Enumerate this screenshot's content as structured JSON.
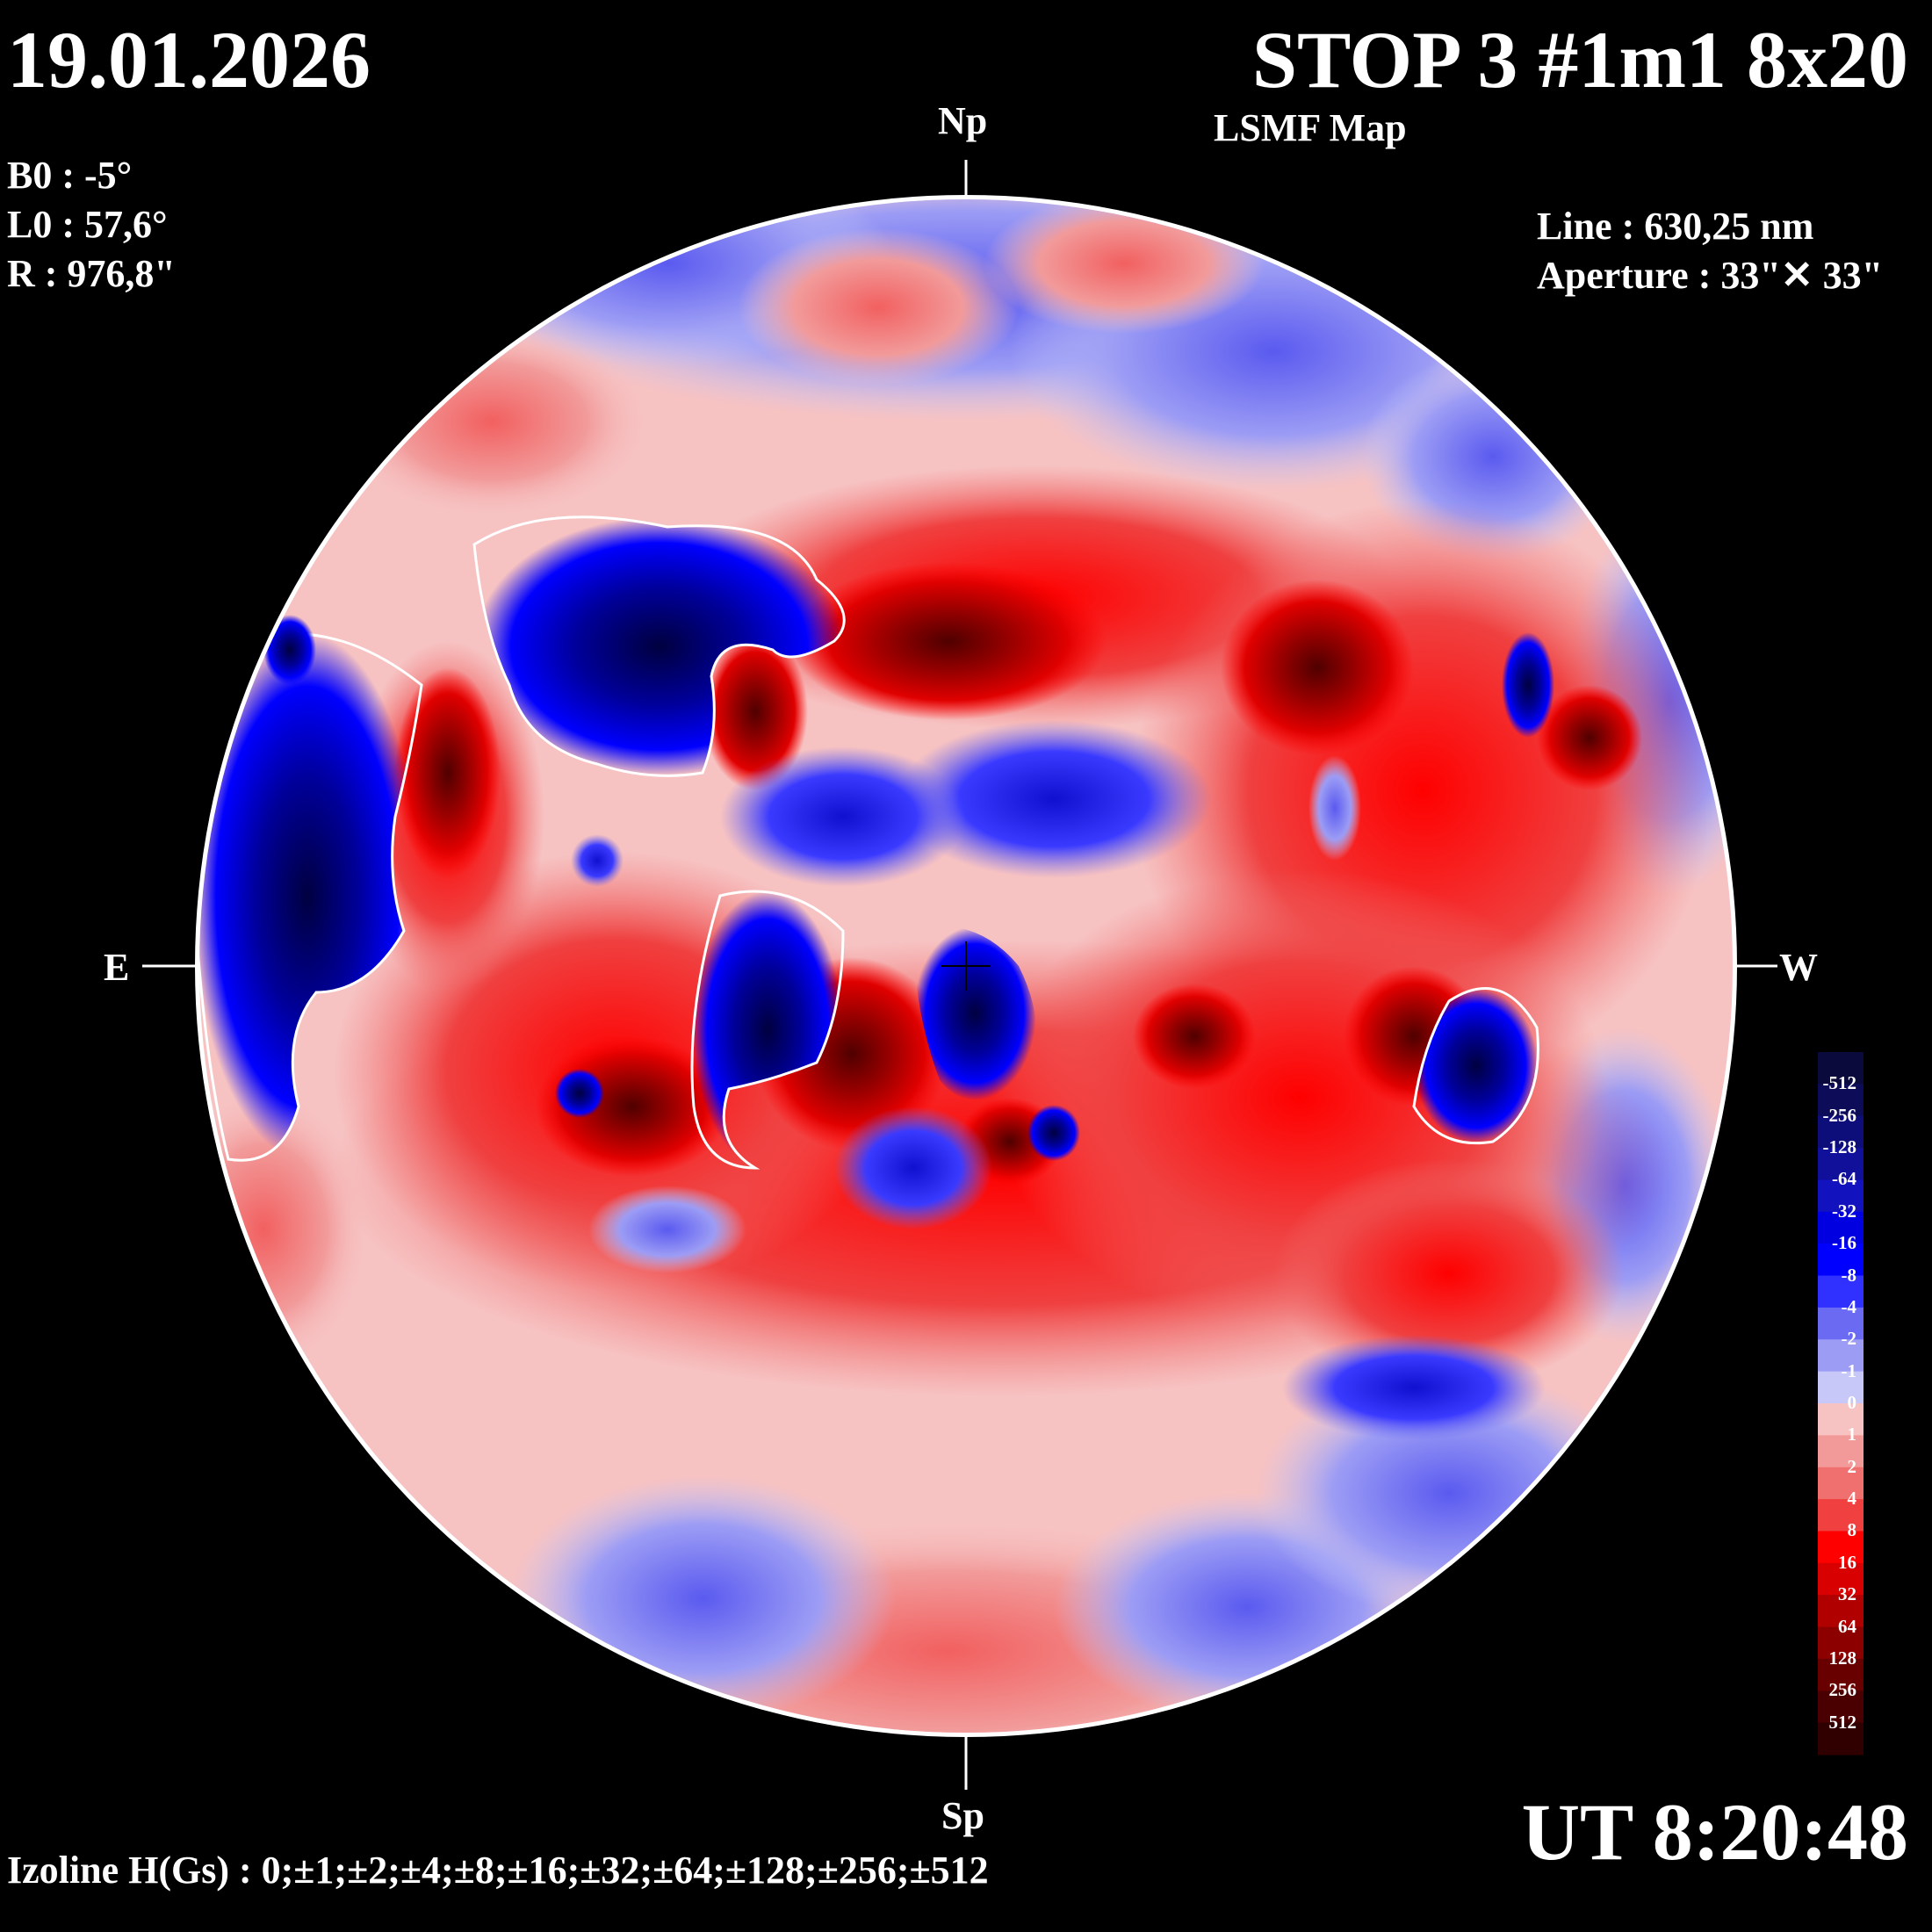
{
  "header": {
    "date": "19.01.2026",
    "title": "STOP 3 #1m1 8x20",
    "subtitle": "LSMF  Map"
  },
  "params": {
    "b0": "B0 : -5°",
    "l0": "L0 : 57,6°",
    "r": "R  : 976,8\""
  },
  "instrument": {
    "line": "Line :  630,25 nm",
    "aperture": "Aperture : 33\"✕ 33\""
  },
  "directions": {
    "north": "Np",
    "south": "Sp",
    "east": "E",
    "west": "W"
  },
  "time": "UT 8:20:48",
  "izoline": "Izoline H(Gs) : 0;±1;±2;±4;±8;±16;±32;±64;±128;±256;±512",
  "colorbar": {
    "ticks": [
      "-512",
      "-256",
      "-128",
      "-64",
      "-32",
      "-16",
      "-8",
      "-4",
      "-2",
      "-1",
      "0",
      "1",
      "2",
      "4",
      "8",
      "16",
      "32",
      "64",
      "128",
      "256",
      "512"
    ],
    "colors": [
      "#0a0a3c",
      "#0c0c58",
      "#0e0e7a",
      "#10109a",
      "#1212be",
      "#0000e0",
      "#0000ff",
      "#3030ff",
      "#6a6af2",
      "#9c9cf5",
      "#c8c8f8",
      "#f7c2c2",
      "#f29a9a",
      "#f07070",
      "#f04040",
      "#ff0000",
      "#d80000",
      "#b00000",
      "#8c0000",
      "#680000",
      "#4a0000",
      "#300000"
    ]
  }
}
